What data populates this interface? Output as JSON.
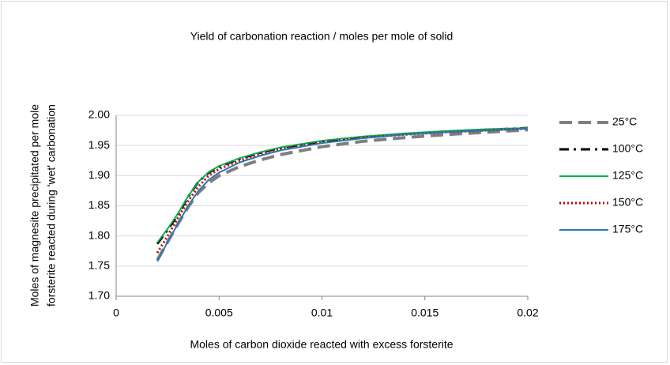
{
  "chart_data": {
    "type": "line",
    "title": "Yield of carbonation reaction / moles per mole of solid",
    "xlabel": "Moles of carbon dioxide reacted with excess forsterite",
    "ylabel": [
      "Moles of magnesite precipitated per mole",
      "forsterite reacted during 'wet' carbonation"
    ],
    "x": [
      0.002,
      0.0025,
      0.003,
      0.0035,
      0.004,
      0.0045,
      0.005,
      0.006,
      0.007,
      0.008,
      0.01,
      0.012,
      0.014,
      0.016,
      0.018,
      0.02
    ],
    "series": [
      {
        "name": "25°C",
        "color": "#7f7f7f",
        "dash": "long-dash",
        "values": [
          1.76,
          1.79,
          1.82,
          1.848,
          1.872,
          1.888,
          1.9,
          1.915,
          1.926,
          1.935,
          1.948,
          1.957,
          1.963,
          1.968,
          1.972,
          1.976
        ]
      },
      {
        "name": "100°C",
        "color": "#000000",
        "dash": "dash-dot",
        "values": [
          1.787,
          1.81,
          1.835,
          1.865,
          1.89,
          1.905,
          1.915,
          1.928,
          1.938,
          1.946,
          1.957,
          1.964,
          1.969,
          1.973,
          1.976,
          1.979
        ]
      },
      {
        "name": "125°C",
        "color": "#00b050",
        "dash": "solid",
        "values": [
          1.789,
          1.812,
          1.837,
          1.866,
          1.89,
          1.906,
          1.916,
          1.929,
          1.939,
          1.947,
          1.958,
          1.965,
          1.97,
          1.974,
          1.977,
          1.979
        ]
      },
      {
        "name": "150°C",
        "color": "#c00000",
        "dash": "dotted",
        "values": [
          1.772,
          1.8,
          1.83,
          1.858,
          1.882,
          1.9,
          1.911,
          1.925,
          1.936,
          1.944,
          1.955,
          1.963,
          1.968,
          1.972,
          1.975,
          1.978
        ]
      },
      {
        "name": "175°C",
        "color": "#2e75b6",
        "dash": "solid",
        "values": [
          1.758,
          1.79,
          1.82,
          1.85,
          1.875,
          1.893,
          1.905,
          1.922,
          1.933,
          1.942,
          1.954,
          1.962,
          1.968,
          1.972,
          1.975,
          1.978
        ]
      }
    ],
    "xlim": [
      0,
      0.02
    ],
    "xticks": [
      0,
      0.005,
      0.01,
      0.015,
      0.02
    ],
    "ylim": [
      1.7,
      2.0
    ],
    "yticks": [
      {
        "value": 1.7,
        "label": "1.70"
      },
      1.75,
      {
        "value": 1.8,
        "label": "1.80"
      },
      1.85,
      {
        "value": 1.9,
        "label": "1.90"
      },
      1.95,
      {
        "value": 2.0,
        "label": "2.00"
      }
    ],
    "grid": true,
    "legend": "right"
  }
}
